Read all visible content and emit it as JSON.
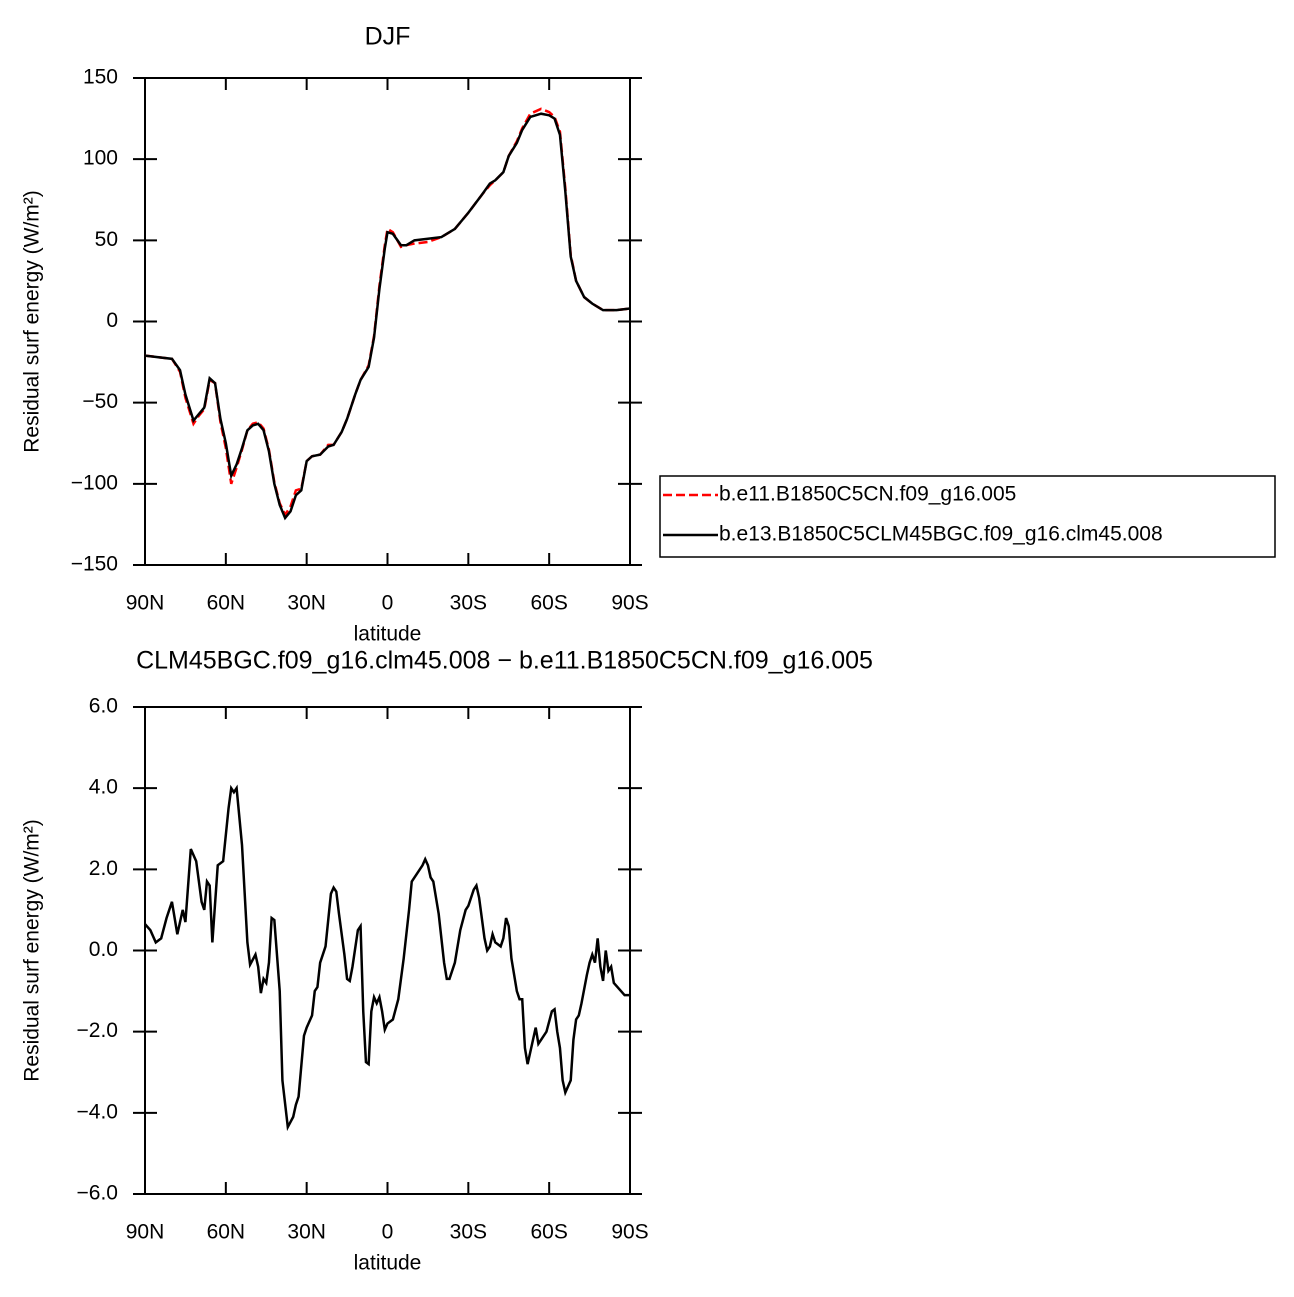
{
  "chart_data": [
    {
      "type": "line",
      "title": "DJF",
      "xlabel": "latitude",
      "ylabel": "Residual surf energy (W/m²)",
      "xlim": [
        90,
        -90
      ],
      "ylim": [
        -150,
        150
      ],
      "xticks": [
        {
          "value": 90,
          "label": "90N"
        },
        {
          "value": 60,
          "label": "60N"
        },
        {
          "value": 30,
          "label": "30N"
        },
        0,
        {
          "value": -30,
          "label": "30S"
        },
        {
          "value": -60,
          "label": "60S"
        },
        {
          "value": -90,
          "label": "90S"
        }
      ],
      "yticks": [
        {
          "value": -150,
          "label": "−150"
        },
        {
          "value": -100,
          "label": "−100"
        },
        {
          "value": -50,
          "label": "−50"
        },
        0,
        50,
        100,
        150
      ],
      "x": [
        90,
        85,
        80,
        77,
        75,
        72,
        70,
        68,
        66,
        64,
        62,
        60,
        58,
        56,
        54,
        52,
        50,
        48,
        46,
        44,
        42,
        40,
        38,
        36,
        34,
        32,
        30,
        28,
        25,
        22,
        20,
        17,
        15,
        12,
        10,
        7,
        5,
        3,
        1,
        0,
        -2,
        -5,
        -7,
        -10,
        -15,
        -20,
        -25,
        -30,
        -35,
        -38,
        -40,
        -43,
        -45,
        -48,
        -50,
        -53,
        -57,
        -60,
        -62,
        -64,
        -66,
        -68,
        -70,
        -73,
        -76,
        -80,
        -85,
        -90
      ],
      "series": [
        {
          "name": "b.e11.B1850C5CN.f09_g16.005",
          "color": "#ff0000",
          "dashed": true,
          "values": [
            -21,
            -22,
            -23,
            -31,
            -47,
            -63,
            -58,
            -54,
            -36,
            -38,
            -62,
            -78,
            -100,
            -90,
            -79,
            -67,
            -63,
            -62,
            -66,
            -79,
            -99,
            -112,
            -119,
            -114,
            -104,
            -103,
            -86,
            -83,
            -82,
            -76,
            -76,
            -68,
            -60,
            -45,
            -36,
            -27,
            -9,
            22,
            47,
            57,
            55,
            46,
            47,
            48,
            49,
            52,
            57,
            67,
            78,
            84,
            87,
            92,
            102,
            111,
            119,
            128,
            131,
            129,
            126,
            117,
            82,
            41,
            25,
            15,
            11,
            7,
            7,
            8
          ]
        },
        {
          "name": "b.e13.B1850C5CLM45BGC.f09_g16.clm45.008",
          "color": "#000000",
          "dashed": false,
          "values": [
            -21,
            -22,
            -23,
            -30,
            -45,
            -61,
            -57,
            -53,
            -35,
            -38,
            -60,
            -75,
            -95,
            -88,
            -78,
            -67,
            -64,
            -63,
            -67,
            -80,
            -100,
            -113,
            -121,
            -117,
            -107,
            -104,
            -86,
            -83,
            -82,
            -77,
            -76,
            -68,
            -60,
            -45,
            -36,
            -28,
            -10,
            20,
            45,
            55,
            54,
            47,
            47,
            50,
            51,
            52,
            57,
            67,
            78,
            85,
            87,
            92,
            102,
            110,
            118,
            126,
            128,
            127,
            125,
            115,
            80,
            40,
            25,
            15,
            11,
            7,
            7,
            8
          ]
        }
      ],
      "legend": "outside-right"
    },
    {
      "type": "line",
      "title": "CLM45BGC.f09_g16.clm45.008 − b.e11.B1850C5CN.f09_g16.005",
      "xlabel": "latitude",
      "ylabel": "Residual surf energy (W/m²)",
      "xlim": [
        90,
        -90
      ],
      "ylim": [
        -6,
        6
      ],
      "xticks": [
        {
          "value": 90,
          "label": "90N"
        },
        {
          "value": 60,
          "label": "60N"
        },
        {
          "value": 30,
          "label": "30N"
        },
        0,
        {
          "value": -30,
          "label": "30S"
        },
        {
          "value": -60,
          "label": "60S"
        },
        {
          "value": -90,
          "label": "90S"
        }
      ],
      "yticks": [
        {
          "value": -6,
          "label": "−6.0"
        },
        {
          "value": -4,
          "label": "−4.0"
        },
        {
          "value": -2,
          "label": "−2.0"
        },
        {
          "value": 0,
          "label": "0.0"
        },
        {
          "value": 2,
          "label": "2.0"
        },
        {
          "value": 4,
          "label": "4.0"
        },
        {
          "value": 6,
          "label": "6.0"
        }
      ],
      "x": [
        90,
        88,
        86,
        84,
        82,
        80,
        78,
        76,
        75,
        73,
        71,
        69,
        68,
        67,
        66,
        65,
        63,
        61,
        59,
        58,
        57,
        56,
        54,
        52,
        51,
        49,
        48,
        47,
        46,
        45,
        44,
        43,
        42,
        40,
        39,
        37,
        35,
        34,
        33,
        31,
        30,
        28,
        27,
        26,
        25,
        23,
        21,
        20,
        19,
        18,
        16,
        15,
        14,
        13,
        11,
        10,
        9,
        8,
        7,
        6,
        5,
        4,
        3,
        2,
        1,
        0,
        -2,
        -4,
        -6,
        -8,
        -9,
        -11,
        -13,
        -14,
        -15,
        -16,
        -17,
        -19,
        -21,
        -22,
        -23,
        -25,
        -27,
        -29,
        -30,
        -32,
        -33,
        -34,
        -36,
        -37,
        -38,
        -39,
        -40,
        -41,
        -42,
        -43,
        -44,
        -45,
        -46,
        -48,
        -49,
        -50,
        -51,
        -52,
        -53,
        -55,
        -56,
        -57,
        -59,
        -61,
        -62,
        -63,
        -64,
        -65,
        -66,
        -68,
        -69,
        -70,
        -71,
        -72,
        -74,
        -75,
        -76,
        -77,
        -78,
        -79,
        -80,
        -81,
        -82,
        -83,
        -84,
        -86,
        -88,
        -90
      ],
      "series": [
        {
          "color": "#000000",
          "dashed": false,
          "values": [
            0.65,
            0.5,
            0.2,
            0.3,
            0.8,
            1.2,
            0.4,
            1.0,
            0.7,
            2.5,
            2.2,
            1.2,
            1.0,
            1.7,
            1.6,
            0.2,
            2.1,
            2.2,
            3.5,
            4.0,
            3.9,
            4.0,
            2.6,
            0.2,
            -0.35,
            -0.1,
            -0.4,
            -1.05,
            -0.7,
            -0.8,
            -0.3,
            0.8,
            0.75,
            -1.0,
            -3.2,
            -4.35,
            -4.1,
            -3.8,
            -3.6,
            -2.1,
            -1.9,
            -1.6,
            -1.0,
            -0.9,
            -0.3,
            0.1,
            1.4,
            1.55,
            1.45,
            0.9,
            -0.1,
            -0.7,
            -0.75,
            -0.4,
            0.5,
            0.6,
            -1.5,
            -2.75,
            -2.8,
            -1.5,
            -1.15,
            -1.3,
            -1.15,
            -1.5,
            -1.95,
            -1.8,
            -1.7,
            -1.2,
            -0.2,
            1.0,
            1.7,
            1.9,
            2.1,
            2.25,
            2.1,
            1.8,
            1.7,
            0.9,
            -0.3,
            -0.7,
            -0.7,
            -0.3,
            0.5,
            1.0,
            1.1,
            1.5,
            1.6,
            1.3,
            0.3,
            0.0,
            0.1,
            0.4,
            0.2,
            0.15,
            0.1,
            0.3,
            0.8,
            0.6,
            -0.2,
            -1.0,
            -1.2,
            -1.2,
            -2.4,
            -2.8,
            -2.5,
            -1.9,
            -2.3,
            -2.2,
            -2.0,
            -1.5,
            -1.45,
            -2.0,
            -2.4,
            -3.2,
            -3.5,
            -3.2,
            -2.2,
            -1.7,
            -1.6,
            -1.3,
            -0.6,
            -0.3,
            -0.1,
            -0.3,
            0.3,
            -0.4,
            -0.75,
            0.0,
            -0.5,
            -0.4,
            -0.8,
            -0.95,
            -1.1,
            -1.1
          ]
        }
      ]
    }
  ]
}
